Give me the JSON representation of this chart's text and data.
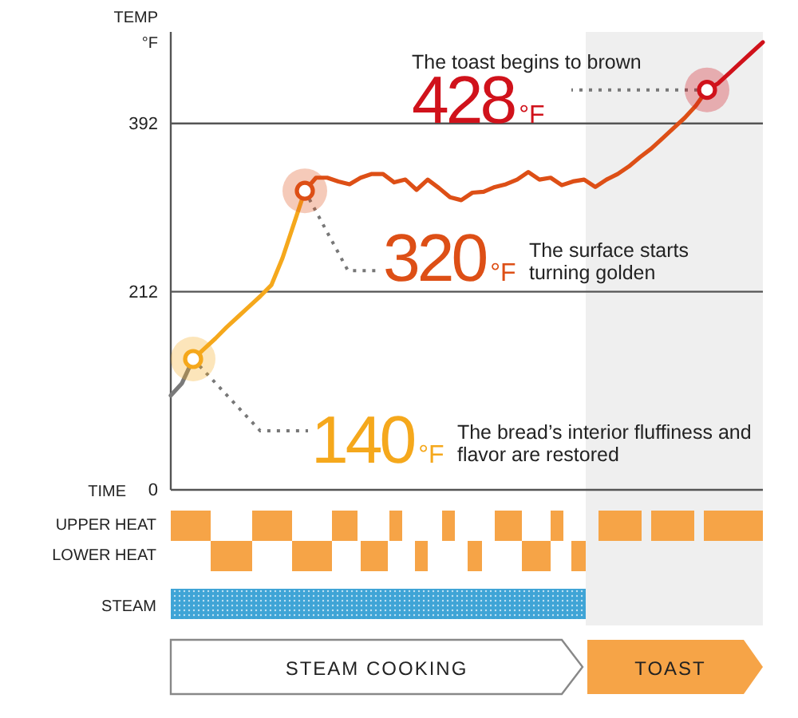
{
  "chart_data": {
    "type": "line",
    "ylabel": "TEMP °F",
    "xlabel": "TIME",
    "categories": [
      null,
      null,
      null,
      null,
      null,
      null,
      null,
      null,
      null,
      null,
      null,
      null,
      null,
      null,
      null,
      null,
      null,
      null,
      null,
      null,
      null,
      null,
      null,
      null,
      null,
      null,
      null,
      null,
      null,
      null,
      null,
      null,
      null,
      null,
      null,
      null,
      null,
      null,
      null,
      null,
      null,
      null,
      null,
      null,
      null,
      null,
      null,
      null,
      null,
      null,
      null,
      null,
      null,
      null
    ],
    "series": [
      {
        "color": "#7a7a7a",
        "values": [
          101,
          114,
          140,
          null,
          null,
          null,
          null,
          null,
          null,
          null,
          null,
          null,
          null,
          null,
          null,
          null,
          null,
          null,
          null,
          null,
          null,
          null,
          null,
          null,
          null,
          null,
          null,
          null,
          null,
          null,
          null,
          null,
          null,
          null,
          null,
          null,
          null,
          null,
          null,
          null,
          null,
          null,
          null,
          null,
          null,
          null,
          null,
          null,
          null,
          null,
          null,
          null,
          null,
          null
        ],
        "value_labels": [
          null,
          null,
          null,
          null,
          null,
          null,
          null,
          null,
          null,
          null,
          null,
          null,
          null,
          null,
          null,
          null,
          null,
          null,
          null,
          null,
          null,
          null,
          null,
          null,
          null,
          null,
          null,
          null,
          null,
          null,
          null,
          null,
          null,
          null,
          null,
          null,
          null,
          null,
          null,
          null,
          null,
          null,
          null,
          null,
          null,
          null,
          null,
          null,
          null,
          null,
          null,
          null,
          null,
          null
        ]
      },
      {
        "color": "#f5a81c",
        "values": [
          null,
          null,
          140,
          151,
          162,
          174,
          185,
          196,
          207,
          219,
          248,
          284,
          320,
          null,
          null,
          null,
          null,
          null,
          null,
          null,
          null,
          null,
          null,
          null,
          null,
          null,
          null,
          null,
          null,
          null,
          null,
          null,
          null,
          null,
          null,
          null,
          null,
          null,
          null,
          null,
          null,
          null,
          null,
          null,
          null,
          null,
          null,
          null,
          null,
          null,
          null,
          null,
          null,
          null
        ],
        "value_labels": [
          null,
          null,
          "140°F",
          null,
          null,
          null,
          null,
          null,
          null,
          null,
          null,
          null,
          null,
          null,
          null,
          null,
          null,
          null,
          null,
          null,
          null,
          null,
          null,
          null,
          null,
          null,
          null,
          null,
          null,
          null,
          null,
          null,
          null,
          null,
          null,
          null,
          null,
          null,
          null,
          null,
          null,
          null,
          null,
          null,
          null,
          null,
          null,
          null,
          null,
          null,
          null,
          null,
          null,
          null
        ]
      },
      {
        "color": "#dd4f16",
        "values": [
          null,
          null,
          null,
          null,
          null,
          null,
          null,
          null,
          null,
          null,
          null,
          null,
          320,
          334,
          334,
          330,
          327,
          334,
          338,
          338,
          329,
          332,
          321,
          332,
          323,
          313,
          310,
          318,
          319,
          324,
          327,
          332,
          340,
          332,
          334,
          326,
          330,
          332,
          324,
          332,
          338,
          346,
          356,
          365,
          376,
          387,
          398,
          411,
          428,
          null,
          null,
          null,
          null,
          null
        ],
        "value_labels": [
          null,
          null,
          null,
          null,
          null,
          null,
          null,
          null,
          null,
          null,
          null,
          null,
          "320°F",
          null,
          null,
          null,
          null,
          null,
          null,
          null,
          null,
          null,
          null,
          null,
          null,
          null,
          null,
          null,
          null,
          null,
          null,
          null,
          null,
          null,
          null,
          null,
          null,
          null,
          null,
          null,
          null,
          null,
          null,
          null,
          null,
          null,
          null,
          null,
          null,
          null,
          null,
          null,
          null,
          null
        ]
      },
      {
        "color": "#d0121b",
        "values": [
          null,
          null,
          null,
          null,
          null,
          null,
          null,
          null,
          null,
          null,
          null,
          null,
          null,
          null,
          null,
          null,
          null,
          null,
          null,
          null,
          null,
          null,
          null,
          null,
          null,
          null,
          null,
          null,
          null,
          null,
          null,
          null,
          null,
          null,
          null,
          null,
          null,
          null,
          null,
          null,
          null,
          null,
          null,
          null,
          null,
          null,
          null,
          null,
          428,
          435,
          446,
          457,
          468,
          479
        ],
        "value_labels": [
          null,
          null,
          null,
          null,
          null,
          null,
          null,
          null,
          null,
          null,
          null,
          null,
          null,
          null,
          null,
          null,
          null,
          null,
          null,
          null,
          null,
          null,
          null,
          null,
          null,
          null,
          null,
          null,
          null,
          null,
          null,
          null,
          null,
          null,
          null,
          null,
          null,
          null,
          null,
          null,
          null,
          null,
          null,
          null,
          null,
          null,
          null,
          null,
          "428°F",
          null,
          null,
          null,
          null,
          null
        ]
      }
    ],
    "ylim": [
      0,
      490
    ],
    "yticks": [
      0,
      212,
      392
    ],
    "grid": "y",
    "tick_labels": "y",
    "annotations": [
      "The bread’s interior fluffiness and flavor are restored",
      "The surface starts turning golden",
      "The toast begins to brown",
      "UPPER HEAT",
      "LOWER HEAT",
      "STEAM",
      "STEAM COOKING",
      "TOAST"
    ]
  }
}
